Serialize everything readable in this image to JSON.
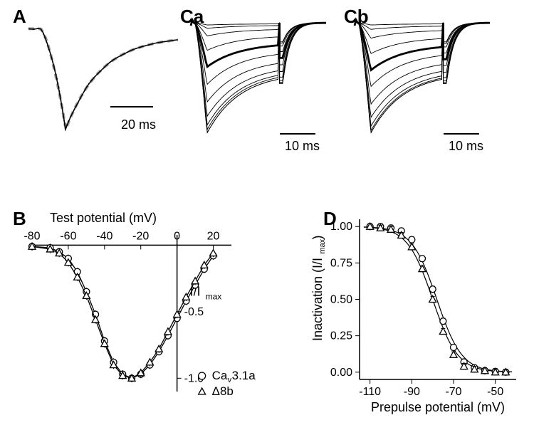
{
  "labels": {
    "A": "A",
    "B": "B",
    "Ca": "Ca",
    "Cb": "Cb",
    "D": "D"
  },
  "panelA": {
    "scalebar_ms": 20,
    "scalebar_label": "20 ms",
    "traces": [
      {
        "color": "#a0a0a0",
        "width": 4,
        "dash": "8,6"
      },
      {
        "color": "#000000",
        "width": 1.5,
        "dash": ""
      },
      {
        "color": "#000000",
        "width": 1.5,
        "dash": "3,3"
      }
    ],
    "curve_shape": {
      "baseline_y": 0.12,
      "peak_x": 0.25,
      "peak_y": 0.95,
      "decay_end_x": 1.0,
      "decay_end_y": 0.18
    }
  },
  "panelB": {
    "xlabel": "Test potential (mV)",
    "ylabel": "I/I",
    "ylabel_sub": "max",
    "xticks": [
      -80,
      -60,
      -40,
      -20,
      0,
      20
    ],
    "xlim": [
      -80,
      30
    ],
    "yticks": [
      0,
      -0.5,
      -1.0
    ],
    "ylim": [
      -1.1,
      0.05
    ],
    "series": [
      {
        "name": "Ca_v3.1a",
        "marker": "circle",
        "points": [
          [
            -80,
            -0.01
          ],
          [
            -70,
            -0.02
          ],
          [
            -65,
            -0.05
          ],
          [
            -60,
            -0.1
          ],
          [
            -55,
            -0.2
          ],
          [
            -50,
            -0.35
          ],
          [
            -45,
            -0.52
          ],
          [
            -40,
            -0.72
          ],
          [
            -35,
            -0.88
          ],
          [
            -30,
            -0.97
          ],
          [
            -25,
            -1.0
          ],
          [
            -20,
            -0.97
          ],
          [
            -15,
            -0.9
          ],
          [
            -10,
            -0.8
          ],
          [
            -5,
            -0.68
          ],
          [
            0,
            -0.55
          ],
          [
            5,
            -0.42
          ],
          [
            10,
            -0.3
          ],
          [
            15,
            -0.18
          ],
          [
            20,
            -0.08
          ]
        ],
        "err": 0.03
      },
      {
        "name": "Delta8b",
        "marker": "triangle",
        "points": [
          [
            -80,
            -0.01
          ],
          [
            -70,
            -0.03
          ],
          [
            -65,
            -0.06
          ],
          [
            -60,
            -0.13
          ],
          [
            -55,
            -0.24
          ],
          [
            -50,
            -0.38
          ],
          [
            -45,
            -0.56
          ],
          [
            -40,
            -0.74
          ],
          [
            -35,
            -0.9
          ],
          [
            -30,
            -0.98
          ],
          [
            -25,
            -1.0
          ],
          [
            -20,
            -0.96
          ],
          [
            -15,
            -0.88
          ],
          [
            -10,
            -0.78
          ],
          [
            -5,
            -0.65
          ],
          [
            0,
            -0.52
          ],
          [
            5,
            -0.39
          ],
          [
            10,
            -0.27
          ],
          [
            15,
            -0.15
          ],
          [
            20,
            -0.06
          ]
        ],
        "err": 0.03
      }
    ],
    "legend": [
      {
        "marker": "circle",
        "label_pre": "Ca",
        "label_sub": "v",
        "label_post": "3.1a"
      },
      {
        "marker": "triangle",
        "label_pre": "Δ8b",
        "label_sub": "",
        "label_post": ""
      }
    ]
  },
  "panelC": {
    "scalebar_label": "10 ms",
    "n_traces": 12,
    "bold_trace_idx": 4,
    "amplitudes_a": [
      0.02,
      0.05,
      0.12,
      0.25,
      0.4,
      0.56,
      0.72,
      0.85,
      0.93,
      0.97,
      1.0,
      1.0
    ],
    "amplitudes_b": [
      0.02,
      0.06,
      0.14,
      0.28,
      0.43,
      0.58,
      0.74,
      0.86,
      0.94,
      0.98,
      1.0,
      1.0
    ],
    "tail_amp": 0.55
  },
  "panelD": {
    "xlabel": "Prepulse potential (mV)",
    "ylabel": "Inactivation (I/I",
    "ylabel_sub": "max",
    "ylabel_post": ")",
    "xticks": [
      -110,
      -90,
      -70,
      -50
    ],
    "xlim": [
      -115,
      -40
    ],
    "yticks": [
      0.0,
      0.25,
      0.5,
      0.75,
      1.0
    ],
    "ylim": [
      -0.05,
      1.05
    ],
    "series": [
      {
        "marker": "circle",
        "points": [
          [
            -110,
            1.0
          ],
          [
            -105,
            1.0
          ],
          [
            -100,
            0.99
          ],
          [
            -95,
            0.97
          ],
          [
            -90,
            0.91
          ],
          [
            -85,
            0.78
          ],
          [
            -80,
            0.57
          ],
          [
            -75,
            0.35
          ],
          [
            -70,
            0.17
          ],
          [
            -65,
            0.07
          ],
          [
            -60,
            0.03
          ],
          [
            -55,
            0.01
          ],
          [
            -50,
            0.005
          ],
          [
            -45,
            0.0
          ]
        ],
        "err": 0.02
      },
      {
        "marker": "triangle",
        "points": [
          [
            -110,
            1.0
          ],
          [
            -105,
            0.99
          ],
          [
            -100,
            0.98
          ],
          [
            -95,
            0.94
          ],
          [
            -90,
            0.86
          ],
          [
            -85,
            0.71
          ],
          [
            -80,
            0.5
          ],
          [
            -75,
            0.28
          ],
          [
            -70,
            0.12
          ],
          [
            -65,
            0.04
          ],
          [
            -60,
            0.02
          ],
          [
            -55,
            0.01
          ],
          [
            -50,
            0.0
          ],
          [
            -45,
            0.0
          ]
        ],
        "err": 0.02
      }
    ],
    "fit_curves": 2
  },
  "colors": {
    "bg": "#ffffff",
    "fg": "#000000",
    "gray": "#a0a0a0"
  },
  "fontsize": {
    "panel_label": 26,
    "axis": 18,
    "tick": 16
  }
}
